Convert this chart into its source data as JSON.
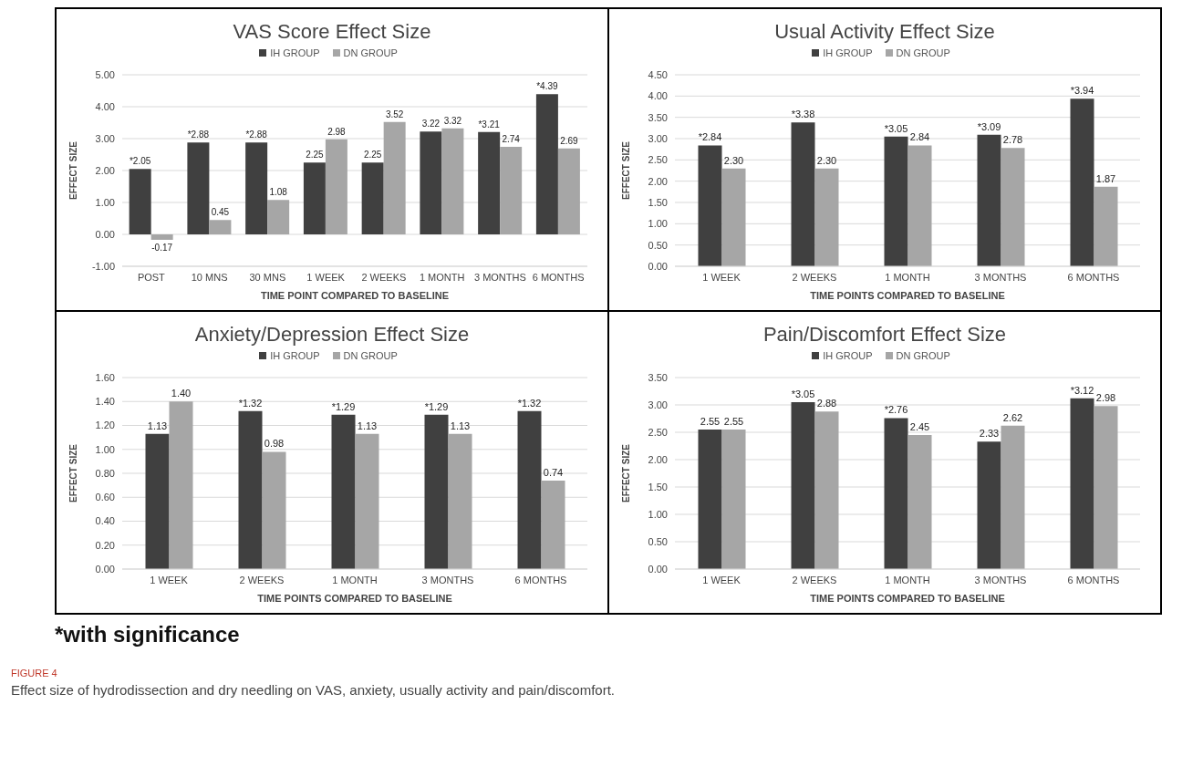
{
  "chart_data": [
    {
      "type": "bar",
      "title": "VAS Score Effect Size",
      "xlabel": "TIME POINT COMPARED TO BASELINE",
      "ylabel": "EFFECT SIZE",
      "categories": [
        "POST",
        "10 MNS",
        "30 MNS",
        "1 WEEK",
        "2 WEEKS",
        "1 MONTH",
        "3 MONTHS",
        "6 MONTHS"
      ],
      "series": [
        {
          "name": "IH GROUP",
          "color": "#404040",
          "values": [
            2.05,
            2.88,
            2.88,
            2.25,
            2.25,
            3.22,
            3.21,
            4.39
          ],
          "value_labels": [
            "*2.05",
            "*2.88",
            "*2.88",
            "2.25",
            "2.25",
            "3.22",
            "*3.21",
            "*4.39"
          ]
        },
        {
          "name": "DN GROUP",
          "color": "#a6a6a6",
          "values": [
            -0.17,
            0.45,
            1.08,
            2.98,
            3.52,
            3.32,
            2.74,
            2.69
          ],
          "value_labels": [
            "-0.17",
            "0.45",
            "1.08",
            "2.98",
            "3.52",
            "3.32",
            "2.74",
            "2.69"
          ]
        }
      ],
      "ylim": [
        -1,
        5
      ],
      "yticks": [
        {
          "value": -1,
          "label": "-1.00"
        },
        {
          "value": 0,
          "label": "0.00"
        },
        {
          "value": 1,
          "label": "1.00"
        },
        {
          "value": 2,
          "label": "2.00"
        },
        {
          "value": 3,
          "label": "3.00"
        },
        {
          "value": 4,
          "label": "4.00"
        },
        {
          "value": 5,
          "label": "5.00"
        }
      ],
      "grid": "y",
      "legend": "top"
    },
    {
      "type": "bar",
      "title": "Usual Activity Effect Size",
      "xlabel": "TIME POINTS COMPARED TO BASELINE",
      "ylabel": "EFFECT SIZE",
      "categories": [
        "1 WEEK",
        "2 WEEKS",
        "1 MONTH",
        "3 MONTHS",
        "6 MONTHS"
      ],
      "series": [
        {
          "name": "IH GROUP",
          "color": "#404040",
          "values": [
            2.84,
            3.38,
            3.05,
            3.09,
            3.94
          ],
          "value_labels": [
            "*2.84",
            "*3.38",
            "*3.05",
            "*3.09",
            "*3.94"
          ]
        },
        {
          "name": "DN GROUP",
          "color": "#a6a6a6",
          "values": [
            2.3,
            2.3,
            2.84,
            2.78,
            1.87
          ],
          "value_labels": [
            "2.30",
            "2.30",
            "2.84",
            "2.78",
            "1.87"
          ]
        }
      ],
      "ylim": [
        0,
        4.5
      ],
      "yticks": [
        {
          "value": 0,
          "label": "0.00"
        },
        {
          "value": 0.5,
          "label": "0.50"
        },
        {
          "value": 1,
          "label": "1.00"
        },
        {
          "value": 1.5,
          "label": "1.50"
        },
        {
          "value": 2,
          "label": "2.00"
        },
        {
          "value": 2.5,
          "label": "2.50"
        },
        {
          "value": 3,
          "label": "3.00"
        },
        {
          "value": 3.5,
          "label": "3.50"
        },
        {
          "value": 4,
          "label": "4.00"
        },
        {
          "value": 4.5,
          "label": "4.50"
        }
      ],
      "grid": "y",
      "legend": "top"
    },
    {
      "type": "bar",
      "title": "Anxiety/Depression Effect Size",
      "xlabel": "TIME POINTS COMPARED TO BASELINE",
      "ylabel": "EFFECT SIZE",
      "categories": [
        "1 WEEK",
        "2 WEEKS",
        "1 MONTH",
        "3 MONTHS",
        "6 MONTHS"
      ],
      "series": [
        {
          "name": "IH GROUP",
          "color": "#404040",
          "values": [
            1.13,
            1.32,
            1.29,
            1.29,
            1.32
          ],
          "value_labels": [
            "1.13",
            "*1.32",
            "*1.29",
            "*1.29",
            "*1.32"
          ]
        },
        {
          "name": "DN GROUP",
          "color": "#a6a6a6",
          "values": [
            1.4,
            0.98,
            1.13,
            1.13,
            0.74
          ],
          "value_labels": [
            "1.40",
            "0.98",
            "1.13",
            "1.13",
            "0.74"
          ]
        }
      ],
      "ylim": [
        0,
        1.6
      ],
      "yticks": [
        {
          "value": 0,
          "label": "0.00"
        },
        {
          "value": 0.2,
          "label": "0.20"
        },
        {
          "value": 0.4,
          "label": "0.40"
        },
        {
          "value": 0.6,
          "label": "0.60"
        },
        {
          "value": 0.8,
          "label": "0.80"
        },
        {
          "value": 1,
          "label": "1.00"
        },
        {
          "value": 1.2,
          "label": "1.20"
        },
        {
          "value": 1.4,
          "label": "1.40"
        },
        {
          "value": 1.6,
          "label": "1.60"
        }
      ],
      "grid": "y",
      "legend": "top"
    },
    {
      "type": "bar",
      "title": "Pain/Discomfort Effect Size",
      "xlabel": "TIME POINTS COMPARED TO BASELINE",
      "ylabel": "EFFECT SIZE",
      "categories": [
        "1 WEEK",
        "2 WEEKS",
        "1 MONTH",
        "3 MONTHS",
        "6 MONTHS"
      ],
      "series": [
        {
          "name": "IH GROUP",
          "color": "#404040",
          "values": [
            2.55,
            3.05,
            2.76,
            2.33,
            3.12
          ],
          "value_labels": [
            "2.55",
            "*3.05",
            "*2.76",
            "2.33",
            "*3.12"
          ]
        },
        {
          "name": "DN GROUP",
          "color": "#a6a6a6",
          "values": [
            2.55,
            2.88,
            2.45,
            2.62,
            2.98
          ],
          "value_labels": [
            "2.55",
            "2.88",
            "2.45",
            "2.62",
            "2.98"
          ]
        }
      ],
      "ylim": [
        0,
        3.5
      ],
      "yticks": [
        {
          "value": 0,
          "label": "0.00"
        },
        {
          "value": 0.5,
          "label": "0.50"
        },
        {
          "value": 1,
          "label": "1.00"
        },
        {
          "value": 1.5,
          "label": "1.50"
        },
        {
          "value": 2,
          "label": "2.00"
        },
        {
          "value": 2.5,
          "label": "2.50"
        },
        {
          "value": 3,
          "label": "3.00"
        },
        {
          "value": 3.5,
          "label": "3.50"
        }
      ],
      "grid": "y",
      "legend": "top",
      "annotations": [
        "*with significance",
        "FIGURE 4",
        "Effect size of hydrodissection and dry needling on VAS, anxiety, usually activity and pain/discomfort."
      ]
    }
  ]
}
